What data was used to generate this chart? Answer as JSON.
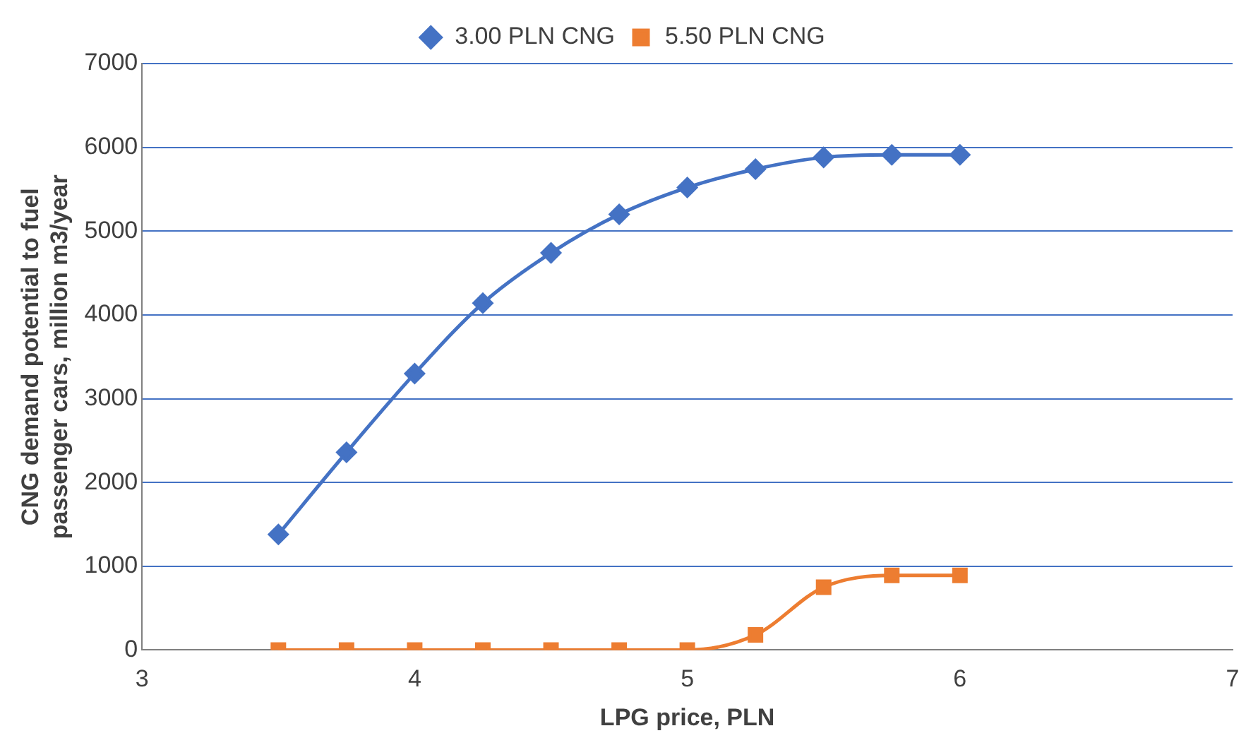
{
  "chart_data": {
    "type": "line",
    "xlabel": "LPG price, PLN",
    "ylabel": "CNG demand potential to fuel passenger cars, million m3/year",
    "xlim": [
      3,
      7
    ],
    "xticks": [
      3,
      4,
      5,
      6,
      7
    ],
    "ylim": [
      0,
      7000
    ],
    "yticks": [
      0,
      1000,
      2000,
      3000,
      4000,
      5000,
      6000,
      7000
    ],
    "grid": "y",
    "legend": "top",
    "x": [
      3.5,
      3.75,
      4,
      4.25,
      4.5,
      4.75,
      5,
      5.25,
      5.5,
      5.75,
      6
    ],
    "series": [
      {
        "name": "3.00 PLN CNG",
        "color": "#4472c4",
        "marker": "diamond",
        "values": [
          1380,
          2360,
          3300,
          4140,
          4740,
          5200,
          5520,
          5740,
          5880,
          5910,
          5910
        ]
      },
      {
        "name": "5.50 PLN CNG",
        "color": "#ed7d31",
        "marker": "square",
        "values": [
          0,
          0,
          0,
          0,
          0,
          0,
          0,
          180,
          750,
          890,
          890
        ]
      }
    ]
  }
}
